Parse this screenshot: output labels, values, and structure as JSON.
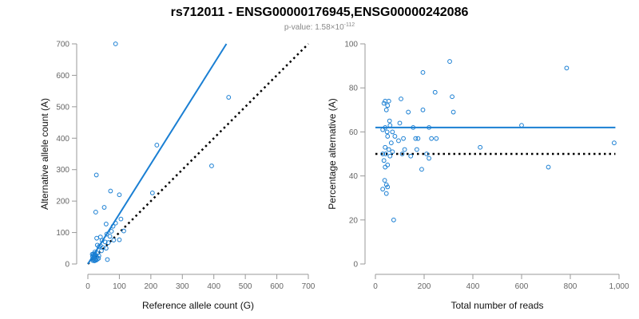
{
  "title": "rs712011 - ENSG00000176945,ENSG00000242086",
  "subtitle": {
    "prefix": "p-value: 1.58×10",
    "exponent": "-112"
  },
  "colors": {
    "points": "#1a7fd3",
    "fit": "#1a7fd3",
    "reference": "#000000",
    "axis": "#999999",
    "text": "#666666"
  },
  "chart_data": [
    {
      "type": "scatter",
      "xlabel": "Reference allele count (G)",
      "ylabel": "Alternative allele count (A)",
      "xlim": [
        0,
        700
      ],
      "ylim": [
        0,
        700
      ],
      "xticks": [
        0,
        100,
        200,
        300,
        400,
        500,
        600,
        700
      ],
      "yticks": [
        0,
        100,
        200,
        300,
        400,
        500,
        600,
        700
      ],
      "xtick_labels": [
        "0",
        "100",
        "200",
        "300",
        "400",
        "500",
        "600",
        "700"
      ],
      "ytick_labels": [
        "0",
        "100",
        "200",
        "300",
        "400",
        "500",
        "600",
        "700"
      ],
      "fit_line": {
        "x": [
          0,
          440
        ],
        "y": [
          0,
          700
        ]
      },
      "reference_line": {
        "x": [
          0,
          700
        ],
        "y": [
          0,
          700
        ]
      },
      "points": [
        [
          88,
          700
        ],
        [
          447,
          530
        ],
        [
          219,
          378
        ],
        [
          393,
          312
        ],
        [
          27,
          283
        ],
        [
          72,
          232
        ],
        [
          100,
          220
        ],
        [
          205,
          226
        ],
        [
          25,
          165
        ],
        [
          52,
          180
        ],
        [
          105,
          143
        ],
        [
          88,
          130
        ],
        [
          58,
          127
        ],
        [
          80,
          120
        ],
        [
          114,
          105
        ],
        [
          75,
          104
        ],
        [
          60,
          95
        ],
        [
          70,
          88
        ],
        [
          28,
          82
        ],
        [
          40,
          86
        ],
        [
          45,
          75
        ],
        [
          55,
          70
        ],
        [
          65,
          68
        ],
        [
          82,
          76
        ],
        [
          100,
          77
        ],
        [
          30,
          60
        ],
        [
          40,
          58
        ],
        [
          35,
          55
        ],
        [
          48,
          52
        ],
        [
          58,
          50
        ],
        [
          43,
          42
        ],
        [
          22,
          38
        ],
        [
          30,
          35
        ],
        [
          17,
          30
        ],
        [
          20,
          28
        ],
        [
          25,
          27
        ],
        [
          15,
          24
        ],
        [
          18,
          20
        ],
        [
          22,
          22
        ],
        [
          28,
          22
        ],
        [
          35,
          26
        ],
        [
          15,
          16
        ],
        [
          19,
          14
        ],
        [
          24,
          15
        ],
        [
          30,
          15
        ],
        [
          34,
          18
        ],
        [
          16,
          11
        ],
        [
          21,
          10
        ],
        [
          26,
          12
        ],
        [
          62,
          14
        ],
        [
          14,
          31
        ],
        [
          22,
          33
        ]
      ]
    },
    {
      "type": "scatter",
      "xlabel": "Total number of reads",
      "ylabel": "Percentage alternative (A)",
      "xlim": [
        0,
        1000
      ],
      "ylim": [
        0,
        100
      ],
      "xticks": [
        0,
        200,
        400,
        600,
        800,
        1000
      ],
      "yticks": [
        0,
        20,
        40,
        60,
        80,
        100
      ],
      "xtick_labels": [
        "0",
        "200",
        "400",
        "600",
        "800",
        "1,000"
      ],
      "ytick_labels": [
        "0",
        "20",
        "40",
        "60",
        "80",
        "100"
      ],
      "fit_line": {
        "x": [
          0,
          985
        ],
        "y": [
          62,
          62
        ]
      },
      "reference_line": {
        "x": [
          0,
          985
        ],
        "y": [
          50,
          50
        ]
      },
      "points": [
        [
          305,
          92
        ],
        [
          785,
          89
        ],
        [
          195,
          87
        ],
        [
          245,
          78
        ],
        [
          315,
          76
        ],
        [
          105,
          75
        ],
        [
          40,
          74
        ],
        [
          35,
          73
        ],
        [
          55,
          74
        ],
        [
          50,
          72
        ],
        [
          45,
          70
        ],
        [
          135,
          69
        ],
        [
          195,
          70
        ],
        [
          320,
          69
        ],
        [
          58,
          65
        ],
        [
          60,
          63
        ],
        [
          100,
          64
        ],
        [
          40,
          62
        ],
        [
          600,
          63
        ],
        [
          155,
          62
        ],
        [
          220,
          62
        ],
        [
          30,
          61
        ],
        [
          48,
          60
        ],
        [
          70,
          60
        ],
        [
          50,
          58
        ],
        [
          80,
          58
        ],
        [
          115,
          57
        ],
        [
          165,
          57
        ],
        [
          175,
          57
        ],
        [
          230,
          57
        ],
        [
          250,
          57
        ],
        [
          65,
          55
        ],
        [
          95,
          56
        ],
        [
          40,
          53
        ],
        [
          55,
          52
        ],
        [
          70,
          51
        ],
        [
          120,
          52
        ],
        [
          170,
          52
        ],
        [
          430,
          53
        ],
        [
          980,
          55
        ],
        [
          30,
          50
        ],
        [
          42,
          50
        ],
        [
          60,
          49
        ],
        [
          110,
          50
        ],
        [
          145,
          49
        ],
        [
          210,
          50
        ],
        [
          220,
          48
        ],
        [
          35,
          47
        ],
        [
          50,
          45
        ],
        [
          40,
          44
        ],
        [
          190,
          43
        ],
        [
          710,
          44
        ],
        [
          38,
          38
        ],
        [
          45,
          36
        ],
        [
          50,
          35
        ],
        [
          30,
          34
        ],
        [
          45,
          32
        ],
        [
          75,
          20
        ]
      ]
    }
  ]
}
